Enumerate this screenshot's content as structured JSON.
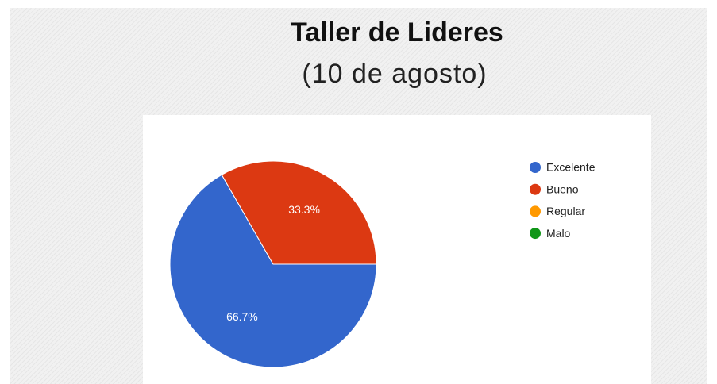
{
  "chart_data": {
    "type": "pie",
    "title": "Taller de Lideres",
    "subtitle": "(10 de agosto)",
    "categories": [
      "Excelente",
      "Bueno",
      "Regular",
      "Malo"
    ],
    "values": [
      66.7,
      33.3,
      0,
      0
    ],
    "value_labels": [
      "66.7%",
      "33.3%",
      null,
      null
    ],
    "colors": [
      "#3366cc",
      "#dc3912",
      "#ff9900",
      "#109618"
    ],
    "legend": "right"
  }
}
